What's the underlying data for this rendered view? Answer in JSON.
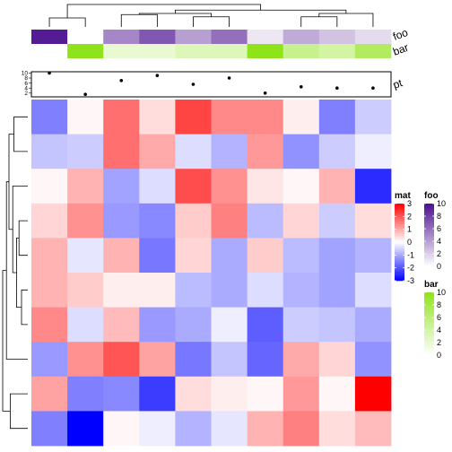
{
  "chart_data": {
    "type": "heatmap",
    "matrix": [
      [
        -1.5,
        0.1,
        1.7,
        0.4,
        2.2,
        1.4,
        1.4,
        0.2,
        -1.5,
        -0.6
      ],
      [
        -0.7,
        -0.6,
        1.7,
        1.0,
        -0.4,
        -0.9,
        1.2,
        -1.3,
        -0.6,
        -0.2
      ],
      [
        0.1,
        0.9,
        -1.1,
        -0.4,
        2.1,
        1.3,
        0.3,
        0.1,
        0.9,
        -2.5
      ],
      [
        0.5,
        1.3,
        -1.2,
        -1.4,
        0.6,
        1.5,
        -0.8,
        0.5,
        -0.6,
        0.4
      ],
      [
        0.9,
        -0.3,
        0.9,
        -1.6,
        0.5,
        -1.0,
        0.6,
        -0.8,
        -1.1,
        -0.9
      ],
      [
        0.9,
        0.6,
        0.2,
        0.2,
        -0.8,
        -1.0,
        -0.4,
        -0.9,
        -1.1,
        -0.4
      ],
      [
        1.4,
        -0.4,
        0.8,
        -1.2,
        -1.0,
        -0.2,
        -1.9,
        -0.6,
        -0.7,
        -1.0
      ],
      [
        -1.2,
        1.3,
        2.0,
        1.1,
        -1.6,
        -0.7,
        -1.8,
        1.0,
        0.5,
        -1.3
      ],
      [
        1.1,
        -1.5,
        -1.4,
        -2.3,
        0.4,
        0.2,
        0.1,
        1.2,
        0.1,
        3.0
      ],
      [
        -1.5,
        -3.0,
        0.1,
        -0.2,
        -0.9,
        -0.3,
        0.9,
        1.5,
        0.4,
        0.8
      ]
    ],
    "annotations": {
      "foo": [
        9.5,
        0,
        5,
        7,
        4,
        6,
        1,
        3.5,
        2.5,
        1.5
      ],
      "bar": [
        0,
        10,
        2,
        2,
        3,
        3,
        10,
        5,
        4,
        7
      ],
      "pt": [
        10,
        1.5,
        7,
        9,
        5.5,
        8,
        2,
        4.5,
        4,
        4
      ]
    },
    "annotation_labels": [
      "foo",
      "bar",
      "pt"
    ],
    "pt_ticks": [
      "10",
      "8",
      "6",
      "4",
      "2"
    ],
    "pt_ylim": [
      0.5,
      10.5
    ],
    "legends": [
      {
        "title": "mat",
        "ticks": [
          "3",
          "2",
          "1",
          "0",
          "-1",
          "-2",
          "-3"
        ],
        "range": [
          -3,
          3
        ],
        "colors": [
          "#0000ff",
          "#ffffff",
          "#ff0000"
        ]
      },
      {
        "title": "foo",
        "ticks": [
          "10",
          "8",
          "6",
          "4",
          "2",
          "0"
        ],
        "range": [
          0,
          10
        ],
        "colors": [
          "#ffffff",
          "#4b0f8f"
        ]
      },
      {
        "title": "bar",
        "ticks": [
          "10",
          "8",
          "6",
          "4",
          "2",
          "0"
        ],
        "range": [
          0,
          10
        ],
        "colors": [
          "#ffffff",
          "#8fe31a"
        ]
      }
    ],
    "colors": {
      "mat_low": "#0000ff",
      "mat_mid": "#ffffff",
      "mat_high": "#ff0000",
      "foo_high": "#4b0f8f",
      "bar_high": "#8fe31a"
    },
    "col_dendrogram": [
      [
        0,
        1,
        0.0,
        0.4
      ],
      [
        2,
        3,
        0.0,
        0.55
      ],
      [
        4,
        5,
        0.0,
        0.45
      ],
      [
        7,
        8,
        0.0,
        0.45
      ],
      [
        9,
        13,
        0.0,
        0.6
      ],
      [
        11,
        12,
        0.55,
        0.6
      ],
      [
        14,
        15,
        0.6,
        0.75
      ],
      [
        10,
        16,
        0.4,
        1.0
      ]
    ],
    "row_dendrogram": [
      [
        5,
        6,
        0.0,
        0.25
      ],
      [
        3,
        4,
        0.0,
        0.35
      ],
      [
        11,
        10,
        0.35,
        0.45
      ],
      [
        0,
        1,
        0.0,
        0.55
      ],
      [
        12,
        2,
        0.45,
        0.6
      ],
      [
        13,
        14,
        0.55,
        0.75
      ],
      [
        7,
        15,
        0.0,
        0.85
      ],
      [
        8,
        9,
        0.0,
        0.7
      ],
      [
        16,
        17,
        0.85,
        1.0
      ]
    ]
  }
}
